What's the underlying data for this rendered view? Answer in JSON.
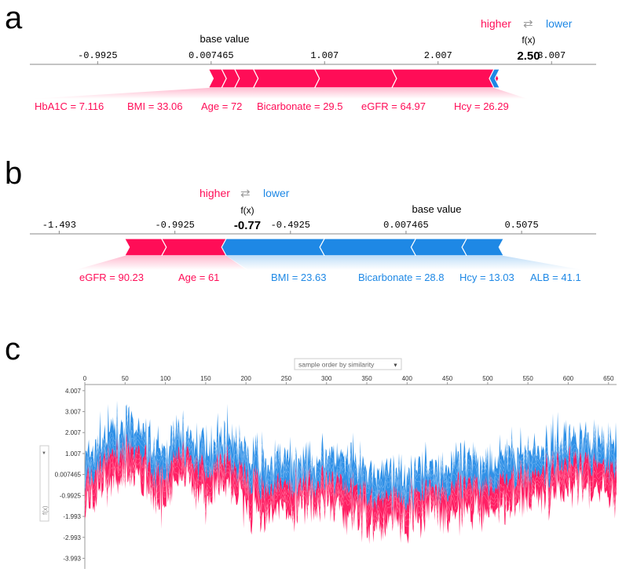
{
  "colors": {
    "pos": "#ff0d57",
    "neg": "#1e88e5",
    "pos_light": "#ffc3d5",
    "neg_light": "#d1e6fa",
    "axis": "#333333"
  },
  "chart_data": [
    {
      "panel": "a",
      "type": "force",
      "legend": {
        "higher": "higher",
        "arrows": "⇄",
        "lower": "lower"
      },
      "fx_label": "f(x)",
      "fx_value": 2.5,
      "fx_text": "2.50",
      "base_label": "base value",
      "base_value": 0.007465,
      "xlim": [
        -1.59,
        3.4
      ],
      "ticks": [
        {
          "v": -0.9925,
          "t": "-0.9925"
        },
        {
          "v": 0.007465,
          "t": "0.007465"
        },
        {
          "v": 1.007,
          "t": "1.007"
        },
        {
          "v": 2.007,
          "t": "2.007"
        },
        {
          "v": 3.007,
          "t": "3.007"
        }
      ],
      "pos_features": [
        {
          "label": "HbA1C = 7.116",
          "from": 0.1,
          "to": -0.0158
        },
        {
          "label": "BMI = 33.06",
          "from": 0.215,
          "to": 0.1
        },
        {
          "label": "Age = 72",
          "from": 0.38,
          "to": 0.215
        },
        {
          "label": "Bicarbonate = 29.5",
          "from": 0.92,
          "to": 0.38
        },
        {
          "label": "eGFR = 64.97",
          "from": 1.6,
          "to": 0.92
        },
        {
          "label": "Hcy = 26.29",
          "from": 2.5,
          "to": 1.6
        }
      ],
      "neg_features": [
        {
          "label": "",
          "from": 2.5,
          "to": 2.55
        }
      ]
    },
    {
      "panel": "b",
      "type": "force",
      "legend": {
        "higher": "higher",
        "arrows": "⇄",
        "lower": "lower"
      },
      "fx_label": "f(x)",
      "fx_value": -0.77,
      "fx_text": "-0.77",
      "base_label": "base value",
      "base_value": 0.007465,
      "xlim": [
        -1.62,
        0.83
      ],
      "ticks": [
        {
          "v": -1.493,
          "t": "-1.493"
        },
        {
          "v": -0.9925,
          "t": "-0.9925"
        },
        {
          "v": -0.4925,
          "t": "-0.4925"
        },
        {
          "v": 0.007465,
          "t": "0.007465"
        },
        {
          "v": 0.5075,
          "t": "0.5075"
        }
      ],
      "pos_features": [
        {
          "label": "eGFR = 90.23",
          "from": -1.05,
          "to": -1.21
        },
        {
          "label": "Age = 61",
          "from": -0.77,
          "to": -1.05
        }
      ],
      "neg_features": [
        {
          "label": "BMI = 23.63",
          "from": -0.77,
          "to": -0.345
        },
        {
          "label": "Bicarbonate = 28.8",
          "from": -0.345,
          "to": 0.05
        },
        {
          "label": "Hcy = 13.03",
          "from": 0.05,
          "to": 0.27
        },
        {
          "label": "ALB = 41.1",
          "from": 0.27,
          "to": 0.43
        }
      ]
    },
    {
      "panel": "c",
      "type": "stacked-area",
      "dropdown": "sample order by similarity",
      "y_dropdown": "f(x)",
      "xlim": [
        0,
        660
      ],
      "ylim": [
        -4.5,
        4.3
      ],
      "x_ticks": [
        0,
        50,
        100,
        150,
        200,
        250,
        300,
        350,
        400,
        450,
        500,
        550,
        600,
        650
      ],
      "y_ticks": [
        {
          "v": 4.007,
          "t": "4.007"
        },
        {
          "v": 3.007,
          "t": "3.007"
        },
        {
          "v": 2.007,
          "t": "2.007"
        },
        {
          "v": 1.007,
          "t": "1.007"
        },
        {
          "v": 0.007465,
          "t": "0.007465"
        },
        {
          "v": -0.9925,
          "t": "-0.9925"
        },
        {
          "v": -1.993,
          "t": "-1.993"
        },
        {
          "v": -2.993,
          "t": "-2.993"
        },
        {
          "v": -3.993,
          "t": "-3.993"
        }
      ],
      "trend": [
        {
          "x": 0,
          "y": -0.5
        },
        {
          "x": 25,
          "y": 0.6
        },
        {
          "x": 45,
          "y": 1.3
        },
        {
          "x": 70,
          "y": 0.8
        },
        {
          "x": 95,
          "y": -0.2
        },
        {
          "x": 120,
          "y": 0.9
        },
        {
          "x": 150,
          "y": 0.2
        },
        {
          "x": 175,
          "y": 0.7
        },
        {
          "x": 200,
          "y": -0.2
        },
        {
          "x": 230,
          "y": -0.6
        },
        {
          "x": 270,
          "y": -0.5
        },
        {
          "x": 300,
          "y": -0.3
        },
        {
          "x": 330,
          "y": -0.6
        },
        {
          "x": 355,
          "y": -1.1
        },
        {
          "x": 400,
          "y": -1.0
        },
        {
          "x": 440,
          "y": -0.8
        },
        {
          "x": 480,
          "y": -0.6
        },
        {
          "x": 520,
          "y": -0.2
        },
        {
          "x": 560,
          "y": -0.1
        },
        {
          "x": 600,
          "y": 0.7
        },
        {
          "x": 640,
          "y": 0.6
        },
        {
          "x": 660,
          "y": 0.1
        }
      ]
    }
  ],
  "panel_labels": [
    "a",
    "b",
    "c"
  ]
}
